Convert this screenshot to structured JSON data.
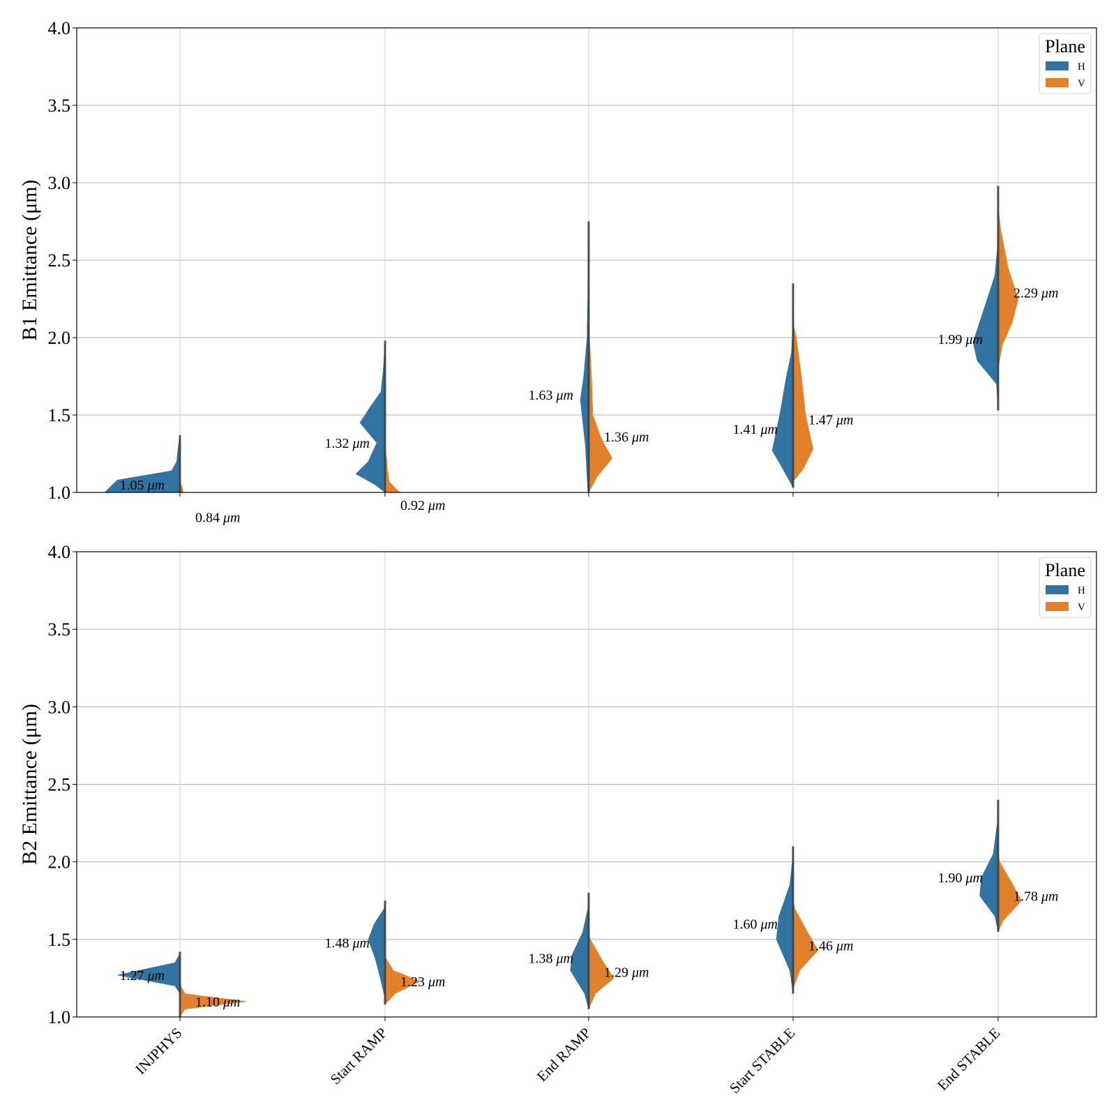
{
  "chart_data": [
    {
      "type": "violin",
      "panel": "B1",
      "ylabel": "B1 Emittance (μm)",
      "ylim": [
        1.0,
        4.0
      ],
      "yticks": [
        "1.0",
        "1.5",
        "2.0",
        "2.5",
        "3.0",
        "3.5",
        "4.0"
      ],
      "categories": [
        "INJPHYS",
        "Start RAMP",
        "End RAMP",
        "Start STABLE",
        "End STABLE"
      ],
      "grid": true,
      "legend": {
        "title": "Plane",
        "position": "top-right",
        "entries": [
          {
            "label": "H",
            "color": "#3274a1"
          },
          {
            "label": "V",
            "color": "#e1812c"
          }
        ]
      },
      "series": [
        {
          "name": "H",
          "color": "#3274a1",
          "side": "left",
          "medians_label": [
            "1.05",
            "1.32",
            "1.63",
            "1.41",
            "1.99"
          ],
          "profiles": [
            [
              [
                1.0,
                0.9
              ],
              [
                1.08,
                0.75
              ],
              [
                1.14,
                0.1
              ],
              [
                1.2,
                0.04
              ],
              [
                1.3,
                0.02
              ],
              [
                1.37,
                0
              ]
            ],
            [
              [
                1.0,
                0
              ],
              [
                1.05,
                0.12
              ],
              [
                1.12,
                0.35
              ],
              [
                1.2,
                0.2
              ],
              [
                1.32,
                0.1
              ],
              [
                1.45,
                0.3
              ],
              [
                1.55,
                0.18
              ],
              [
                1.65,
                0.05
              ],
              [
                1.8,
                0.02
              ],
              [
                1.98,
                0
              ]
            ],
            [
              [
                1.0,
                0.01
              ],
              [
                1.3,
                0.04
              ],
              [
                1.6,
                0.1
              ],
              [
                1.75,
                0.06
              ],
              [
                2.0,
                0.02
              ],
              [
                2.3,
                0.01
              ],
              [
                2.75,
                0
              ]
            ],
            [
              [
                1.03,
                0
              ],
              [
                1.15,
                0.12
              ],
              [
                1.27,
                0.25
              ],
              [
                1.5,
                0.16
              ],
              [
                1.75,
                0.08
              ],
              [
                1.9,
                0.02
              ],
              [
                2.05,
                0.005
              ],
              [
                2.35,
                0
              ]
            ],
            [
              [
                1.53,
                0
              ],
              [
                1.7,
                0.02
              ],
              [
                1.85,
                0.25
              ],
              [
                1.97,
                0.3
              ],
              [
                2.2,
                0.16
              ],
              [
                2.4,
                0.04
              ],
              [
                2.6,
                0.005
              ],
              [
                2.98,
                0
              ]
            ]
          ]
        },
        {
          "name": "V",
          "color": "#e1812c",
          "side": "right",
          "medians_label": [
            "0.84",
            "0.92",
            "1.36",
            "1.47",
            "2.29"
          ],
          "profiles": [
            [
              [
                1.0,
                0.04
              ],
              [
                1.03,
                0.03
              ],
              [
                1.06,
                0.01
              ],
              [
                1.08,
                0
              ]
            ],
            [
              [
                1.0,
                0.18
              ],
              [
                1.03,
                0.12
              ],
              [
                1.07,
                0.05
              ],
              [
                1.15,
                0.03
              ],
              [
                1.22,
                0.02
              ],
              [
                1.28,
                0
              ]
            ],
            [
              [
                1.0,
                0
              ],
              [
                1.1,
                0.1
              ],
              [
                1.22,
                0.28
              ],
              [
                1.35,
                0.15
              ],
              [
                1.5,
                0.05
              ],
              [
                1.8,
                0.03
              ],
              [
                2.0,
                0.01
              ],
              [
                2.1,
                0
              ]
            ],
            [
              [
                1.07,
                0
              ],
              [
                1.15,
                0.12
              ],
              [
                1.28,
                0.24
              ],
              [
                1.5,
                0.15
              ],
              [
                1.75,
                0.1
              ],
              [
                2.0,
                0.04
              ],
              [
                2.08,
                0.005
              ],
              [
                2.35,
                0
              ]
            ],
            [
              [
                1.8,
                0
              ],
              [
                1.95,
                0.05
              ],
              [
                2.1,
                0.17
              ],
              [
                2.25,
                0.24
              ],
              [
                2.45,
                0.12
              ],
              [
                2.7,
                0.03
              ],
              [
                2.8,
                0.01
              ],
              [
                2.9,
                0
              ]
            ]
          ]
        }
      ]
    },
    {
      "type": "violin",
      "panel": "B2",
      "ylabel": "B2 Emittance (μm)",
      "ylim": [
        1.0,
        4.0
      ],
      "yticks": [
        "1.0",
        "1.5",
        "2.0",
        "2.5",
        "3.0",
        "3.5",
        "4.0"
      ],
      "categories": [
        "INJPHYS",
        "Start RAMP",
        "End RAMP",
        "Start STABLE",
        "End STABLE"
      ],
      "grid": true,
      "legend": {
        "title": "Plane",
        "position": "top-right",
        "entries": [
          {
            "label": "H",
            "color": "#3274a1"
          },
          {
            "label": "V",
            "color": "#e1812c"
          }
        ]
      },
      "series": [
        {
          "name": "H",
          "color": "#3274a1",
          "side": "left",
          "medians_label": [
            "1.27",
            "1.48",
            "1.38",
            "1.60",
            "1.90"
          ],
          "profiles": [
            [
              [
                1.15,
                0
              ],
              [
                1.2,
                0.06
              ],
              [
                1.27,
                0.75
              ],
              [
                1.35,
                0.06
              ],
              [
                1.4,
                0.01
              ],
              [
                1.42,
                0
              ]
            ],
            [
              [
                1.12,
                0
              ],
              [
                1.3,
                0.08
              ],
              [
                1.38,
                0.12
              ],
              [
                1.5,
                0.2
              ],
              [
                1.6,
                0.13
              ],
              [
                1.7,
                0.01
              ],
              [
                1.75,
                0
              ]
            ],
            [
              [
                1.05,
                0
              ],
              [
                1.15,
                0.05
              ],
              [
                1.3,
                0.22
              ],
              [
                1.4,
                0.2
              ],
              [
                1.55,
                0.07
              ],
              [
                1.7,
                0.01
              ],
              [
                1.8,
                0
              ]
            ],
            [
              [
                1.15,
                0
              ],
              [
                1.3,
                0.04
              ],
              [
                1.5,
                0.2
              ],
              [
                1.65,
                0.17
              ],
              [
                1.85,
                0.04
              ],
              [
                2.0,
                0.01
              ],
              [
                2.1,
                0
              ]
            ],
            [
              [
                1.55,
                0
              ],
              [
                1.65,
                0.04
              ],
              [
                1.78,
                0.22
              ],
              [
                1.9,
                0.2
              ],
              [
                2.05,
                0.06
              ],
              [
                2.25,
                0.01
              ],
              [
                2.4,
                0
              ]
            ]
          ]
        },
        {
          "name": "V",
          "color": "#e1812c",
          "side": "right",
          "medians_label": [
            "1.10",
            "1.23",
            "1.29",
            "1.46",
            "1.78"
          ],
          "profiles": [
            [
              [
                1.0,
                0
              ],
              [
                1.05,
                0.06
              ],
              [
                1.1,
                0.8
              ],
              [
                1.15,
                0.06
              ],
              [
                1.2,
                0.01
              ],
              [
                1.22,
                0
              ]
            ],
            [
              [
                1.08,
                0
              ],
              [
                1.15,
                0.12
              ],
              [
                1.23,
                0.42
              ],
              [
                1.3,
                0.1
              ],
              [
                1.38,
                0.01
              ],
              [
                1.4,
                0
              ]
            ],
            [
              [
                1.05,
                0
              ],
              [
                1.15,
                0.08
              ],
              [
                1.25,
                0.3
              ],
              [
                1.35,
                0.18
              ],
              [
                1.5,
                0.02
              ],
              [
                1.55,
                0
              ]
            ],
            [
              [
                1.18,
                0
              ],
              [
                1.3,
                0.08
              ],
              [
                1.43,
                0.3
              ],
              [
                1.55,
                0.17
              ],
              [
                1.7,
                0.02
              ],
              [
                1.75,
                0
              ]
            ],
            [
              [
                1.55,
                0
              ],
              [
                1.62,
                0.06
              ],
              [
                1.75,
                0.28
              ],
              [
                1.85,
                0.18
              ],
              [
                2.0,
                0.02
              ],
              [
                2.05,
                0
              ]
            ]
          ]
        }
      ]
    }
  ],
  "unit_label": "μm"
}
